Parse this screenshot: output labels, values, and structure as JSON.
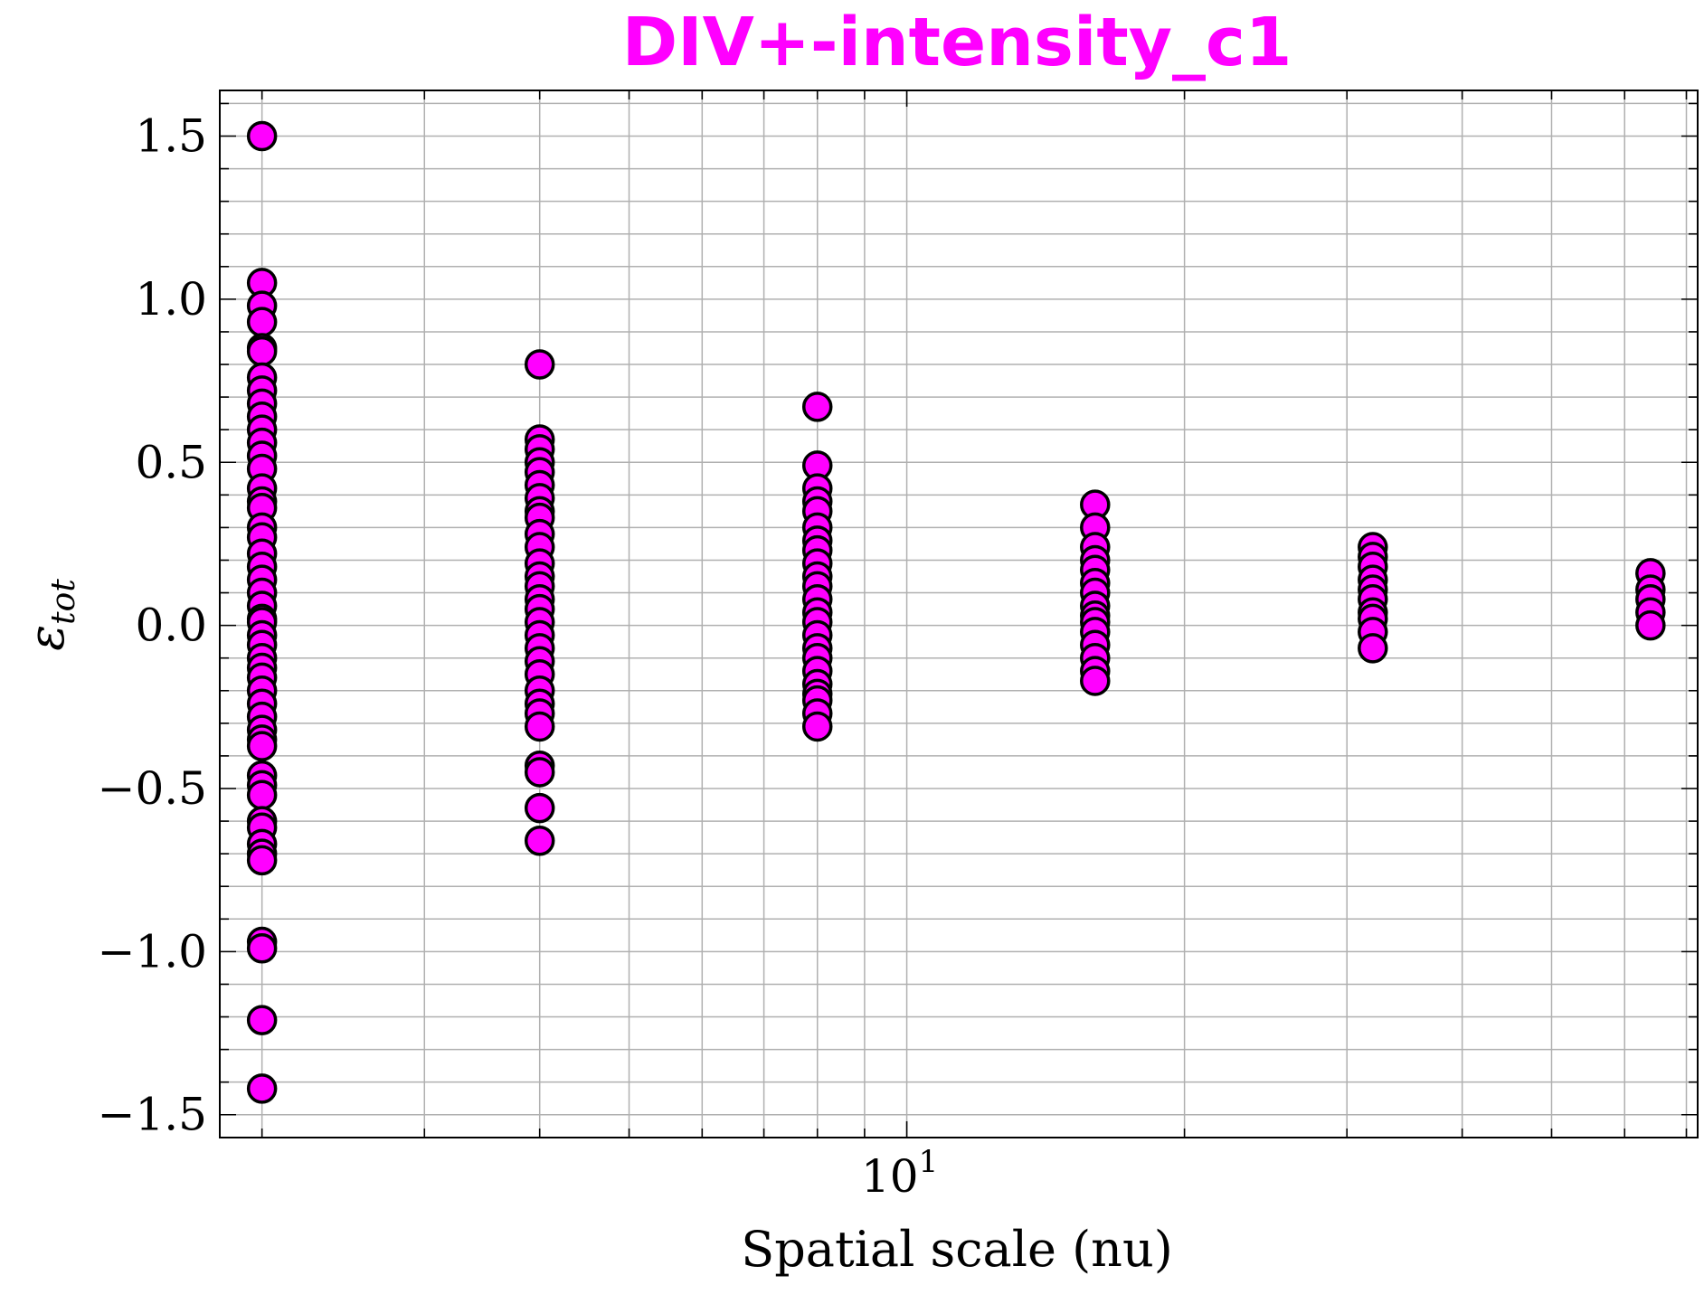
{
  "chart_data": {
    "type": "scatter",
    "title": "DIV+-intensity_c1",
    "title_color": "#ff00ff",
    "xlabel": "Spatial scale (nu)",
    "ylabel_main": "ε",
    "ylabel_sub": "tot",
    "x_scale": "log",
    "xlim": [
      1.8,
      72
    ],
    "ylim": [
      -1.57,
      1.64
    ],
    "y_ticks": [
      -1.5,
      -1.0,
      -0.5,
      0.0,
      0.5,
      1.0,
      1.5
    ],
    "y_tick_labels": [
      "−1.5",
      "−1.0",
      "−0.5",
      "0.0",
      "0.5",
      "1.0",
      "1.5"
    ],
    "x_major_ticks": [
      10
    ],
    "x_tick_base": "10",
    "x_tick_exp": "1",
    "grid": true,
    "marker_face": "#ff00ff",
    "marker_edge": "#000000",
    "series": [
      {
        "points": [
          [
            2,
            1.5
          ],
          [
            2,
            1.05
          ],
          [
            2,
            0.98
          ],
          [
            2,
            0.93
          ],
          [
            2,
            0.85
          ],
          [
            2,
            0.84
          ],
          [
            2,
            0.76
          ],
          [
            2,
            0.72
          ],
          [
            2,
            0.68
          ],
          [
            2,
            0.64
          ],
          [
            2,
            0.6
          ],
          [
            2,
            0.56
          ],
          [
            2,
            0.52
          ],
          [
            2,
            0.48
          ],
          [
            2,
            0.42
          ],
          [
            2,
            0.38
          ],
          [
            2,
            0.36
          ],
          [
            2,
            0.3
          ],
          [
            2,
            0.27
          ],
          [
            2,
            0.22
          ],
          [
            2,
            0.18
          ],
          [
            2,
            0.14
          ],
          [
            2,
            0.1
          ],
          [
            2,
            0.06
          ],
          [
            2,
            0.02
          ],
          [
            2,
            0.01
          ],
          [
            2,
            -0.03
          ],
          [
            2,
            -0.06
          ],
          [
            2,
            -0.1
          ],
          [
            2,
            -0.13
          ],
          [
            2,
            -0.16
          ],
          [
            2,
            -0.2
          ],
          [
            2,
            -0.24
          ],
          [
            2,
            -0.28
          ],
          [
            2,
            -0.32
          ],
          [
            2,
            -0.35
          ],
          [
            2,
            -0.37
          ],
          [
            2,
            -0.46
          ],
          [
            2,
            -0.49
          ],
          [
            2,
            -0.52
          ],
          [
            2,
            -0.6
          ],
          [
            2,
            -0.62
          ],
          [
            2,
            -0.67
          ],
          [
            2,
            -0.7
          ],
          [
            2,
            -0.72
          ],
          [
            2,
            -0.97
          ],
          [
            2,
            -0.99
          ],
          [
            2,
            -1.21
          ],
          [
            2,
            -1.42
          ],
          [
            4,
            0.8
          ],
          [
            4,
            0.57
          ],
          [
            4,
            0.54
          ],
          [
            4,
            0.5
          ],
          [
            4,
            0.47
          ],
          [
            4,
            0.43
          ],
          [
            4,
            0.39
          ],
          [
            4,
            0.35
          ],
          [
            4,
            0.33
          ],
          [
            4,
            0.28
          ],
          [
            4,
            0.24
          ],
          [
            4,
            0.19
          ],
          [
            4,
            0.15
          ],
          [
            4,
            0.12
          ],
          [
            4,
            0.08
          ],
          [
            4,
            0.05
          ],
          [
            4,
            0.01
          ],
          [
            4,
            -0.03
          ],
          [
            4,
            -0.07
          ],
          [
            4,
            -0.11
          ],
          [
            4,
            -0.15
          ],
          [
            4,
            -0.2
          ],
          [
            4,
            -0.24
          ],
          [
            4,
            -0.27
          ],
          [
            4,
            -0.31
          ],
          [
            4,
            -0.43
          ],
          [
            4,
            -0.45
          ],
          [
            4,
            -0.56
          ],
          [
            4,
            -0.66
          ],
          [
            8,
            0.67
          ],
          [
            8,
            0.49
          ],
          [
            8,
            0.42
          ],
          [
            8,
            0.38
          ],
          [
            8,
            0.35
          ],
          [
            8,
            0.3
          ],
          [
            8,
            0.26
          ],
          [
            8,
            0.23
          ],
          [
            8,
            0.19
          ],
          [
            8,
            0.15
          ],
          [
            8,
            0.12
          ],
          [
            8,
            0.08
          ],
          [
            8,
            0.04
          ],
          [
            8,
            0.01
          ],
          [
            8,
            -0.03
          ],
          [
            8,
            -0.07
          ],
          [
            8,
            -0.1
          ],
          [
            8,
            -0.14
          ],
          [
            8,
            -0.18
          ],
          [
            8,
            -0.21
          ],
          [
            8,
            -0.23
          ],
          [
            8,
            -0.27
          ],
          [
            8,
            -0.31
          ],
          [
            16,
            0.37
          ],
          [
            16,
            0.3
          ],
          [
            16,
            0.24
          ],
          [
            16,
            0.2
          ],
          [
            16,
            0.17
          ],
          [
            16,
            0.13
          ],
          [
            16,
            0.1
          ],
          [
            16,
            0.06
          ],
          [
            16,
            0.03
          ],
          [
            16,
            0.01
          ],
          [
            16,
            -0.02
          ],
          [
            16,
            -0.06
          ],
          [
            16,
            -0.1
          ],
          [
            16,
            -0.14
          ],
          [
            16,
            -0.17
          ],
          [
            32,
            0.24
          ],
          [
            32,
            0.21
          ],
          [
            32,
            0.18
          ],
          [
            32,
            0.14
          ],
          [
            32,
            0.11
          ],
          [
            32,
            0.08
          ],
          [
            32,
            0.04
          ],
          [
            32,
            0.02
          ],
          [
            32,
            -0.02
          ],
          [
            32,
            -0.07
          ],
          [
            64,
            0.16
          ],
          [
            64,
            0.11
          ],
          [
            64,
            0.08
          ],
          [
            64,
            0.04
          ],
          [
            64,
            0.0
          ]
        ]
      }
    ]
  }
}
